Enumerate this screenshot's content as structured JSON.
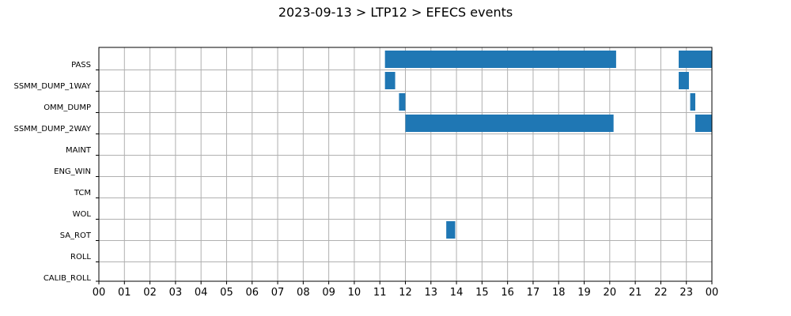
{
  "chart_data": {
    "type": "bar",
    "orientation": "horizontal-timeline",
    "title": "2023-09-13 > LTP12 > EFECS events",
    "xlabel": "",
    "ylabel": "",
    "x_unit": "hour of day",
    "xlim": [
      0,
      24
    ],
    "x_tick_labels": [
      "00",
      "01",
      "02",
      "03",
      "04",
      "05",
      "06",
      "07",
      "08",
      "09",
      "10",
      "11",
      "12",
      "13",
      "14",
      "15",
      "16",
      "17",
      "18",
      "19",
      "20",
      "21",
      "22",
      "23",
      "00"
    ],
    "categories": [
      "PASS",
      "SSMM_DUMP_1WAY",
      "OMM_DUMP",
      "SSMM_DUMP_2WAY",
      "MAINT",
      "ENG_WIN",
      "TCM",
      "WOL",
      "SA_ROT",
      "ROLL",
      "CALIB_ROLL"
    ],
    "grid": true,
    "bar_color": "#1f77b4",
    "events": [
      {
        "category": "PASS",
        "start": 11.2,
        "end": 20.25
      },
      {
        "category": "PASS",
        "start": 22.7,
        "end": 24.0
      },
      {
        "category": "SSMM_DUMP_1WAY",
        "start": 11.2,
        "end": 11.6
      },
      {
        "category": "SSMM_DUMP_1WAY",
        "start": 22.7,
        "end": 23.1
      },
      {
        "category": "OMM_DUMP",
        "start": 11.75,
        "end": 12.0
      },
      {
        "category": "OMM_DUMP",
        "start": 23.15,
        "end": 23.35
      },
      {
        "category": "SSMM_DUMP_2WAY",
        "start": 12.0,
        "end": 20.15
      },
      {
        "category": "SSMM_DUMP_2WAY",
        "start": 23.35,
        "end": 24.0
      },
      {
        "category": "SA_ROT",
        "start": 13.6,
        "end": 13.95
      }
    ]
  }
}
